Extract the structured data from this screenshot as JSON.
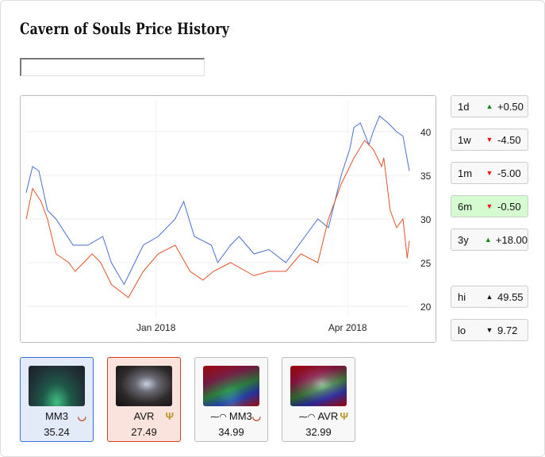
{
  "title": "Cavern of Souls Price History",
  "search": {
    "value": "",
    "placeholder": ""
  },
  "periods": [
    {
      "label": "1d",
      "dir": "up",
      "change": "+0.50",
      "selected": false
    },
    {
      "label": "1w",
      "dir": "down",
      "change": "-4.50",
      "selected": false
    },
    {
      "label": "1m",
      "dir": "down",
      "change": "-5.00",
      "selected": false
    },
    {
      "label": "6m",
      "dir": "down",
      "change": "-0.50",
      "selected": true
    },
    {
      "label": "3y",
      "dir": "up",
      "change": "+18.00",
      "selected": false
    }
  ],
  "extremes": [
    {
      "label": "hi",
      "dir": "up",
      "value": "49.55"
    },
    {
      "label": "lo",
      "dir": "down",
      "value": "9.72"
    }
  ],
  "colors": {
    "up": "#118811",
    "down": "#ee1111",
    "mm3": "#4a6fd0",
    "avr": "#e0522a"
  },
  "printings": [
    {
      "set": "MM3",
      "price": "35.24",
      "foil": false,
      "style": "blue",
      "set_symbol": "mm3-set-icon"
    },
    {
      "set": "AVR",
      "price": "27.49",
      "foil": false,
      "style": "red",
      "set_symbol": "avr-set-icon"
    },
    {
      "set": "MM3",
      "price": "34.99",
      "foil": true,
      "style": "plain",
      "set_symbol": "mm3-set-icon"
    },
    {
      "set": "AVR",
      "price": "32.99",
      "foil": true,
      "style": "plain",
      "set_symbol": "avr-set-icon"
    }
  ],
  "chart_data": {
    "type": "line",
    "x_unit": "days since 2017-11-01",
    "xlim": [
      0,
      180
    ],
    "ylim": [
      18.5,
      43
    ],
    "x_ticks": [
      {
        "x": 61,
        "label": "Jan 2018"
      },
      {
        "x": 151,
        "label": "Apr 2018"
      }
    ],
    "y_ticks": [
      20,
      25,
      30,
      35,
      40
    ],
    "series": [
      {
        "name": "MM3",
        "color": "#4a6fd0",
        "points": [
          [
            0,
            33
          ],
          [
            3,
            36
          ],
          [
            6,
            35.5
          ],
          [
            10,
            31
          ],
          [
            14,
            30
          ],
          [
            22,
            27
          ],
          [
            29,
            27
          ],
          [
            36,
            28
          ],
          [
            40,
            25
          ],
          [
            46,
            22.5
          ],
          [
            49,
            24
          ],
          [
            55,
            27
          ],
          [
            62,
            28
          ],
          [
            70,
            30
          ],
          [
            74,
            32
          ],
          [
            79,
            28
          ],
          [
            87,
            27
          ],
          [
            90,
            25
          ],
          [
            96,
            27
          ],
          [
            100,
            28
          ],
          [
            107,
            26
          ],
          [
            114,
            26.5
          ],
          [
            122,
            25
          ],
          [
            131,
            28
          ],
          [
            137,
            30
          ],
          [
            142,
            29
          ],
          [
            148,
            35
          ],
          [
            152,
            38
          ],
          [
            154,
            40.5
          ],
          [
            157,
            41
          ],
          [
            161,
            38.5
          ],
          [
            163,
            40
          ],
          [
            166,
            41.8
          ],
          [
            170,
            41
          ],
          [
            174,
            40
          ],
          [
            177,
            39.5
          ],
          [
            180,
            35.5
          ]
        ]
      },
      {
        "name": "AVR",
        "color": "#e0522a",
        "points": [
          [
            0,
            30
          ],
          [
            3,
            33.5
          ],
          [
            7,
            32
          ],
          [
            10,
            30
          ],
          [
            14,
            26
          ],
          [
            20,
            25
          ],
          [
            23,
            24
          ],
          [
            31,
            26
          ],
          [
            35,
            25
          ],
          [
            40,
            22.5
          ],
          [
            48,
            21
          ],
          [
            55,
            24
          ],
          [
            62,
            26
          ],
          [
            70,
            27
          ],
          [
            77,
            24
          ],
          [
            83,
            23
          ],
          [
            88,
            24
          ],
          [
            96,
            25
          ],
          [
            107,
            23.5
          ],
          [
            114,
            24
          ],
          [
            122,
            24
          ],
          [
            129,
            26
          ],
          [
            137,
            25
          ],
          [
            142,
            30
          ],
          [
            148,
            34
          ],
          [
            154,
            37
          ],
          [
            159,
            39
          ],
          [
            163,
            38
          ],
          [
            167,
            36
          ],
          [
            168,
            37
          ],
          [
            171,
            31
          ],
          [
            174,
            29
          ],
          [
            177,
            30
          ],
          [
            179,
            25.5
          ],
          [
            180,
            27.5
          ]
        ]
      }
    ]
  }
}
